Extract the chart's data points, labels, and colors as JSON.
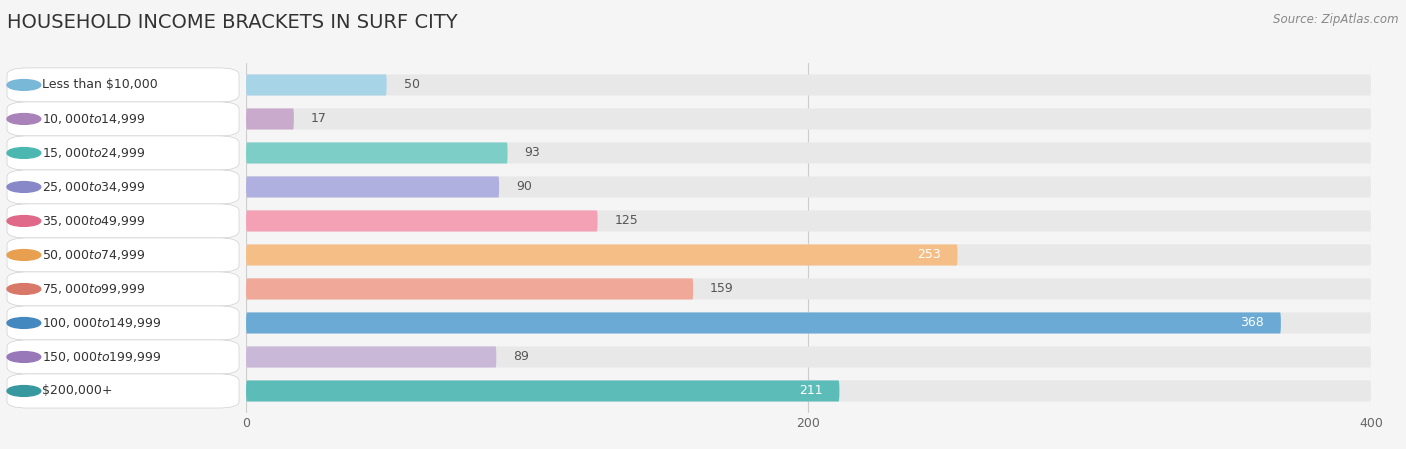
{
  "title": "HOUSEHOLD INCOME BRACKETS IN SURF CITY",
  "source": "Source: ZipAtlas.com",
  "categories": [
    "Less than $10,000",
    "$10,000 to $14,999",
    "$15,000 to $24,999",
    "$25,000 to $34,999",
    "$35,000 to $49,999",
    "$50,000 to $74,999",
    "$75,000 to $99,999",
    "$100,000 to $149,999",
    "$150,000 to $199,999",
    "$200,000+"
  ],
  "values": [
    50,
    17,
    93,
    90,
    125,
    253,
    159,
    368,
    89,
    211
  ],
  "bar_colors": [
    "#a8d4e8",
    "#c9aacc",
    "#7ecec8",
    "#b0b0e0",
    "#f4a0b5",
    "#f5be87",
    "#f0a898",
    "#6aaad4",
    "#c9b8d8",
    "#5bbcb8"
  ],
  "dot_colors": [
    "#7ab8d8",
    "#a882b8",
    "#4ab8b0",
    "#8888c8",
    "#e06888",
    "#e8a050",
    "#d87868",
    "#4488c0",
    "#9878b8",
    "#3898a0"
  ],
  "bg_color": "#f5f5f5",
  "bar_bg_color": "#e8e8e8",
  "xlim": [
    0,
    400
  ],
  "xticks": [
    0,
    200,
    400
  ],
  "title_fontsize": 14,
  "label_fontsize": 9,
  "value_fontsize": 9,
  "value_inside_threshold": 200
}
